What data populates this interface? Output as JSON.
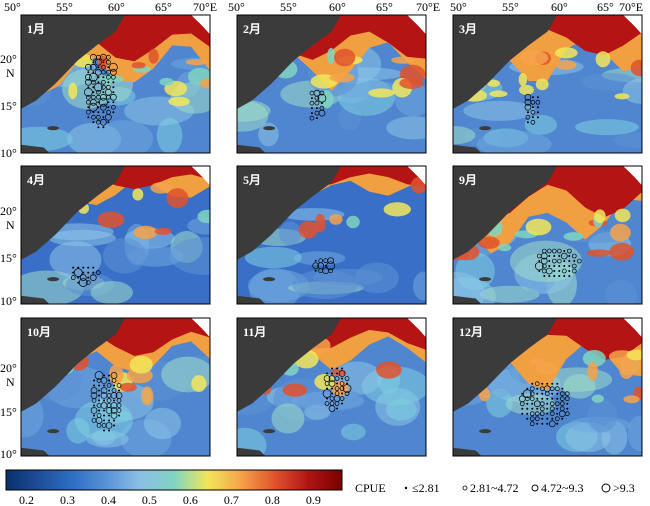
{
  "figure": {
    "panels": [
      {
        "id": "p1",
        "label": "1月",
        "hotspot": 0.75,
        "blue": 0.25,
        "cluster_cx": 0.42,
        "cluster_cy": 0.55,
        "cluster_rx": 0.09,
        "cluster_ry": 0.28
      },
      {
        "id": "p2",
        "label": "2月",
        "hotspot": 0.7,
        "blue": 0.35,
        "cluster_cx": 0.42,
        "cluster_cy": 0.65,
        "cluster_rx": 0.05,
        "cluster_ry": 0.12
      },
      {
        "id": "p3",
        "label": "3月",
        "hotspot": 0.6,
        "blue": 0.45,
        "cluster_cx": 0.42,
        "cluster_cy": 0.68,
        "cluster_rx": 0.05,
        "cluster_ry": 0.12
      },
      {
        "id": "p4",
        "label": "4月",
        "hotspot": 0.2,
        "blue": 0.8,
        "cluster_cx": 0.33,
        "cluster_cy": 0.78,
        "cluster_rx": 0.08,
        "cluster_ry": 0.08
      },
      {
        "id": "p5",
        "label": "5月",
        "hotspot": 0.15,
        "blue": 0.85,
        "cluster_cx": 0.45,
        "cluster_cy": 0.72,
        "cluster_rx": 0.06,
        "cluster_ry": 0.07
      },
      {
        "id": "p6",
        "label": "9月",
        "hotspot": 0.85,
        "blue": 0.2,
        "cluster_cx": 0.55,
        "cluster_cy": 0.7,
        "cluster_rx": 0.12,
        "cluster_ry": 0.12
      },
      {
        "id": "p7",
        "label": "10月",
        "hotspot": 0.55,
        "blue": 0.45,
        "cluster_cx": 0.45,
        "cluster_cy": 0.6,
        "cluster_rx": 0.09,
        "cluster_ry": 0.22
      },
      {
        "id": "p8",
        "label": "11月",
        "hotspot": 0.4,
        "blue": 0.55,
        "cluster_cx": 0.52,
        "cluster_cy": 0.5,
        "cluster_rx": 0.07,
        "cluster_ry": 0.17
      },
      {
        "id": "p9",
        "label": "12月",
        "hotspot": 0.65,
        "blue": 0.35,
        "cluster_cx": 0.48,
        "cluster_cy": 0.62,
        "cluster_rx": 0.14,
        "cluster_ry": 0.18
      }
    ],
    "top_axis_labels": [
      "50°",
      "55°",
      "60°",
      "65°",
      "70°E"
    ],
    "left_axis_labels": [
      "20°",
      "N",
      "15°",
      "10°"
    ],
    "colorbar": {
      "ticks": [
        "0.2",
        "0.3",
        "0.4",
        "0.5",
        "0.6",
        "0.7",
        "0.8",
        "0.9"
      ],
      "tick_values": [
        0.2,
        0.3,
        0.4,
        0.5,
        0.6,
        0.7,
        0.8,
        0.9
      ],
      "min": 0.15,
      "max": 0.97,
      "colors": [
        "#08306b",
        "#1f4e9a",
        "#2e6fc4",
        "#5a93d6",
        "#8cbfe6",
        "#7fd4c2",
        "#f2e65a",
        "#f6a24a",
        "#e0522d",
        "#b01515",
        "#7a0000"
      ]
    },
    "legend": {
      "title": "CPUE",
      "items": [
        {
          "symbol": "dot",
          "label": "≤2.81"
        },
        {
          "symbol": "small-circle",
          "label": "2.81~4.72"
        },
        {
          "symbol": "medium-circle",
          "label": "4.72~9.3"
        },
        {
          "symbol": "large-circle",
          "label": ">9.3"
        }
      ]
    },
    "colors": {
      "land": "#3b3b3b",
      "border": "#000000",
      "frame": "#000000"
    }
  }
}
